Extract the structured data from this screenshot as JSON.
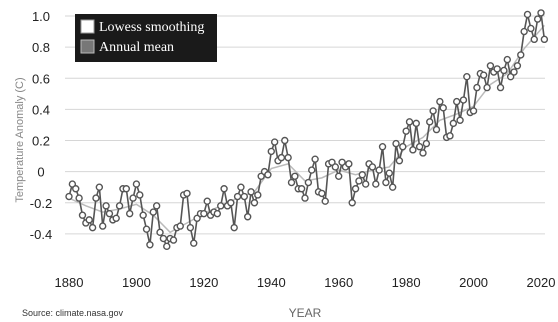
{
  "chart_data": {
    "type": "line",
    "xlabel": "YEAR",
    "ylabel": "Temperature Anomaly (C)",
    "xlim": [
      1880,
      2020
    ],
    "ylim": [
      -0.6,
      1.0
    ],
    "xticks": [
      "1880",
      "1900",
      "1920",
      "1940",
      "1960",
      "1980",
      "2000",
      "2020"
    ],
    "yticks": [
      "1.0",
      "0.8",
      "0.6",
      "0.4",
      "0.2",
      "0",
      "-0.2",
      "-0.4"
    ],
    "grid": "horizontal",
    "legend_position": "top-left",
    "legend": [
      "Lowess smoothing",
      "Annual mean"
    ],
    "source": "Source: climate.nasa.gov",
    "series": [
      {
        "name": "Annual mean",
        "color": "#555555",
        "marker": "circle",
        "x": [
          1880,
          1881,
          1882,
          1883,
          1884,
          1885,
          1886,
          1887,
          1888,
          1889,
          1890,
          1891,
          1892,
          1893,
          1894,
          1895,
          1896,
          1897,
          1898,
          1899,
          1900,
          1901,
          1902,
          1903,
          1904,
          1905,
          1906,
          1907,
          1908,
          1909,
          1910,
          1911,
          1912,
          1913,
          1914,
          1915,
          1916,
          1917,
          1918,
          1919,
          1920,
          1921,
          1922,
          1923,
          1924,
          1925,
          1926,
          1927,
          1928,
          1929,
          1930,
          1931,
          1932,
          1933,
          1934,
          1935,
          1936,
          1937,
          1938,
          1939,
          1940,
          1941,
          1942,
          1943,
          1944,
          1945,
          1946,
          1947,
          1948,
          1949,
          1950,
          1951,
          1952,
          1953,
          1954,
          1955,
          1956,
          1957,
          1958,
          1959,
          1960,
          1961,
          1962,
          1963,
          1964,
          1965,
          1966,
          1967,
          1968,
          1969,
          1970,
          1971,
          1972,
          1973,
          1974,
          1975,
          1976,
          1977,
          1978,
          1979,
          1980,
          1981,
          1982,
          1983,
          1984,
          1985,
          1986,
          1987,
          1988,
          1989,
          1990,
          1991,
          1992,
          1993,
          1994,
          1995,
          1996,
          1997,
          1998,
          1999,
          2000,
          2001,
          2002,
          2003,
          2004,
          2005,
          2006,
          2007,
          2008,
          2009,
          2010,
          2011,
          2012,
          2013,
          2014,
          2015,
          2016,
          2017,
          2018,
          2019,
          2020,
          2021
        ],
        "values": [
          -0.16,
          -0.08,
          -0.11,
          -0.17,
          -0.28,
          -0.33,
          -0.31,
          -0.36,
          -0.17,
          -0.1,
          -0.35,
          -0.22,
          -0.27,
          -0.31,
          -0.3,
          -0.22,
          -0.11,
          -0.11,
          -0.27,
          -0.17,
          -0.08,
          -0.15,
          -0.28,
          -0.37,
          -0.47,
          -0.26,
          -0.22,
          -0.39,
          -0.43,
          -0.48,
          -0.43,
          -0.44,
          -0.36,
          -0.35,
          -0.15,
          -0.14,
          -0.36,
          -0.46,
          -0.3,
          -0.27,
          -0.27,
          -0.19,
          -0.28,
          -0.26,
          -0.27,
          -0.22,
          -0.11,
          -0.22,
          -0.2,
          -0.36,
          -0.16,
          -0.1,
          -0.16,
          -0.29,
          -0.13,
          -0.2,
          -0.15,
          -0.03,
          0.0,
          -0.02,
          0.13,
          0.19,
          0.07,
          0.09,
          0.2,
          0.09,
          -0.07,
          -0.03,
          -0.11,
          -0.11,
          -0.17,
          -0.07,
          0.01,
          0.08,
          -0.13,
          -0.14,
          -0.19,
          0.05,
          0.06,
          0.03,
          -0.03,
          0.06,
          0.03,
          0.05,
          -0.2,
          -0.11,
          -0.06,
          -0.02,
          -0.08,
          0.05,
          0.03,
          -0.08,
          0.01,
          0.16,
          -0.07,
          -0.01,
          -0.1,
          0.18,
          0.07,
          0.16,
          0.26,
          0.32,
          0.14,
          0.31,
          0.16,
          0.12,
          0.18,
          0.32,
          0.39,
          0.27,
          0.45,
          0.41,
          0.22,
          0.23,
          0.31,
          0.45,
          0.33,
          0.46,
          0.61,
          0.38,
          0.39,
          0.54,
          0.63,
          0.62,
          0.54,
          0.68,
          0.64,
          0.66,
          0.54,
          0.65,
          0.72,
          0.61,
          0.64,
          0.68,
          0.75,
          0.9,
          1.01,
          0.92,
          0.85,
          0.98,
          1.02,
          0.85
        ]
      },
      {
        "name": "Lowess smoothing",
        "color": "#bbbbbb",
        "marker": "none",
        "x": [
          1880,
          1885,
          1890,
          1895,
          1900,
          1905,
          1910,
          1915,
          1920,
          1925,
          1930,
          1935,
          1940,
          1945,
          1950,
          1955,
          1960,
          1965,
          1970,
          1975,
          1980,
          1985,
          1990,
          1995,
          2000,
          2005,
          2010,
          2015,
          2021
        ],
        "values": [
          -0.17,
          -0.22,
          -0.26,
          -0.24,
          -0.21,
          -0.28,
          -0.39,
          -0.33,
          -0.27,
          -0.22,
          -0.17,
          -0.13,
          0.02,
          0.05,
          -0.06,
          -0.04,
          0.01,
          -0.02,
          0.01,
          0.03,
          0.16,
          0.22,
          0.33,
          0.37,
          0.42,
          0.56,
          0.63,
          0.79,
          0.94
        ]
      }
    ]
  }
}
